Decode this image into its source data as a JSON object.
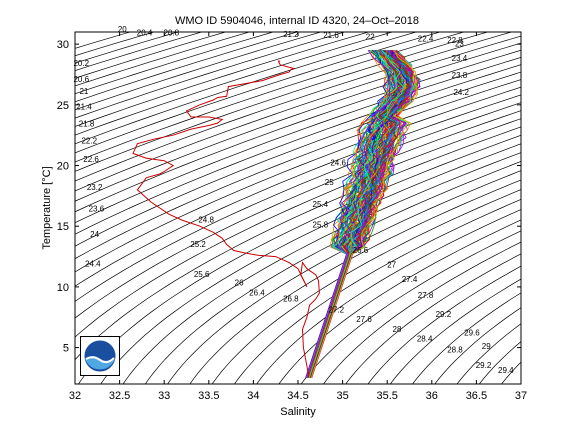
{
  "chart_data": {
    "type": "line",
    "title": "WMO ID 5904046, internal ID 4320, 24–Oct–2018",
    "xlabel": "Salinity",
    "ylabel": "Temperature [°C]",
    "xlim": [
      32,
      37
    ],
    "ylim": [
      2,
      31
    ],
    "xticks": [
      32,
      32.5,
      33,
      33.5,
      34,
      34.5,
      35,
      35.5,
      36,
      36.5,
      37
    ],
    "xtick_labels": [
      "32",
      "32.5",
      "33",
      "33.5",
      "34",
      "34.5",
      "35",
      "35.5",
      "36",
      "36.5",
      "37"
    ],
    "yticks": [
      5,
      10,
      15,
      20,
      25,
      30
    ],
    "ytick_labels": [
      "5",
      "10",
      "15",
      "20",
      "25",
      "30"
    ],
    "grid": false,
    "density_contour_labels": [
      {
        "label": "20",
        "s": 32.53,
        "t": 31.0
      },
      {
        "label": "20.4",
        "s": 32.78,
        "t": 30.7
      },
      {
        "label": "20.8",
        "s": 33.08,
        "t": 30.7
      },
      {
        "label": "21.2",
        "s": 34.42,
        "t": 30.6
      },
      {
        "label": "21.6",
        "s": 34.87,
        "t": 30.5
      },
      {
        "label": "22",
        "s": 35.31,
        "t": 30.4
      },
      {
        "label": "22.4",
        "s": 35.93,
        "t": 30.2
      },
      {
        "label": "22.8",
        "s": 36.26,
        "t": 30.1
      },
      {
        "label": "23",
        "s": 36.31,
        "t": 29.8
      },
      {
        "label": "20.2",
        "s": 32.07,
        "t": 28.2
      },
      {
        "label": "20.6",
        "s": 32.07,
        "t": 26.9
      },
      {
        "label": "21",
        "s": 32.1,
        "t": 25.9
      },
      {
        "label": "21.4",
        "s": 32.1,
        "t": 24.6
      },
      {
        "label": "21.8",
        "s": 32.13,
        "t": 23.2
      },
      {
        "label": "22.2",
        "s": 32.16,
        "t": 21.8
      },
      {
        "label": "22.6",
        "s": 32.18,
        "t": 20.3
      },
      {
        "label": "23.2",
        "s": 32.22,
        "t": 18.0
      },
      {
        "label": "23.6",
        "s": 32.24,
        "t": 16.2
      },
      {
        "label": "24",
        "s": 32.22,
        "t": 14.1
      },
      {
        "label": "24.4",
        "s": 32.2,
        "t": 11.7
      },
      {
        "label": "23.4",
        "s": 36.31,
        "t": 28.6
      },
      {
        "label": "23.8",
        "s": 36.31,
        "t": 27.2
      },
      {
        "label": "24.2",
        "s": 36.33,
        "t": 25.8
      },
      {
        "label": "24.8",
        "s": 33.47,
        "t": 15.3
      },
      {
        "label": "25.2",
        "s": 33.38,
        "t": 13.3
      },
      {
        "label": "25.6",
        "s": 33.42,
        "t": 10.8
      },
      {
        "label": "26",
        "s": 33.84,
        "t": 10.1
      },
      {
        "label": "26.4",
        "s": 34.04,
        "t": 9.3
      },
      {
        "label": "26.8",
        "s": 34.42,
        "t": 8.8
      },
      {
        "label": "27.2",
        "s": 34.93,
        "t": 7.9
      },
      {
        "label": "27.6",
        "s": 35.24,
        "t": 7.1
      },
      {
        "label": "28",
        "s": 35.61,
        "t": 6.3
      },
      {
        "label": "28.4",
        "s": 35.92,
        "t": 5.5
      },
      {
        "label": "28.8",
        "s": 36.26,
        "t": 4.6
      },
      {
        "label": "29",
        "s": 36.61,
        "t": 4.9
      },
      {
        "label": "29.2",
        "s": 36.58,
        "t": 3.3
      },
      {
        "label": "29.4",
        "s": 36.83,
        "t": 2.9
      },
      {
        "label": "29.6",
        "s": 36.45,
        "t": 6.0
      },
      {
        "label": "29.2",
        "s": 36.13,
        "t": 7.5
      },
      {
        "label": "27.8",
        "s": 35.93,
        "t": 9.1
      },
      {
        "label": "27.4",
        "s": 35.75,
        "t": 10.4
      },
      {
        "label": "27",
        "s": 35.55,
        "t": 11.6
      },
      {
        "label": "26.6",
        "s": 35.2,
        "t": 12.8
      },
      {
        "label": "25.8",
        "s": 34.75,
        "t": 14.9
      },
      {
        "label": "25.4",
        "s": 34.75,
        "t": 16.6
      },
      {
        "label": "25",
        "s": 34.85,
        "t": 18.4
      },
      {
        "label": "24.6",
        "s": 34.95,
        "t": 20.0
      }
    ],
    "series": [
      {
        "color": "#cc0000",
        "s": [
          34.62,
          34.6,
          34.56,
          34.55,
          34.6,
          34.63,
          34.7,
          34.74,
          34.73,
          34.7,
          34.6,
          34.55,
          34.53,
          34.6,
          34.5,
          34.4,
          34.25,
          34.05,
          33.9,
          33.78,
          33.7,
          33.65,
          33.55,
          33.4,
          33.2,
          33.05,
          32.85,
          32.7,
          32.8,
          32.95,
          33.0,
          33.1,
          33.0,
          32.8,
          32.65,
          32.7,
          32.9,
          33.1,
          33.3,
          33.5,
          33.6,
          33.65,
          33.5,
          33.3,
          33.25,
          33.4,
          33.55,
          33.6,
          33.7,
          33.72,
          34.1,
          34.3,
          34.4,
          34.42,
          34.45,
          34.3,
          34.28,
          34.3
        ],
        "t": [
          2.6,
          3.5,
          5.0,
          6.5,
          7.5,
          8.5,
          9.0,
          9.5,
          10.5,
          11.0,
          11.5,
          12.0,
          11.0,
          10.0,
          11.5,
          12.0,
          12.5,
          12.6,
          12.8,
          13.0,
          13.5,
          14.0,
          14.5,
          15.0,
          15.5,
          16.0,
          17.0,
          18.0,
          19.0,
          19.3,
          19.5,
          20.0,
          20.4,
          20.6,
          21.0,
          21.8,
          22.2,
          22.5,
          23.0,
          23.3,
          23.5,
          23.8,
          24.0,
          24.0,
          24.5,
          25.0,
          25.4,
          25.6,
          25.7,
          26.5,
          27.0,
          27.5,
          27.7,
          27.9,
          28.0,
          28.3,
          28.6,
          28.6
        ]
      }
    ],
    "profile_cloud": {
      "n_profiles": 120,
      "colors": [
        "#0000ff",
        "#00a000",
        "#ff0000",
        "#00bfbf",
        "#bf00bf",
        "#bfbf00",
        "#404040",
        "#ff8000",
        "#0080ff",
        "#8000ff",
        "#00ff80",
        "#804000"
      ]
    }
  }
}
